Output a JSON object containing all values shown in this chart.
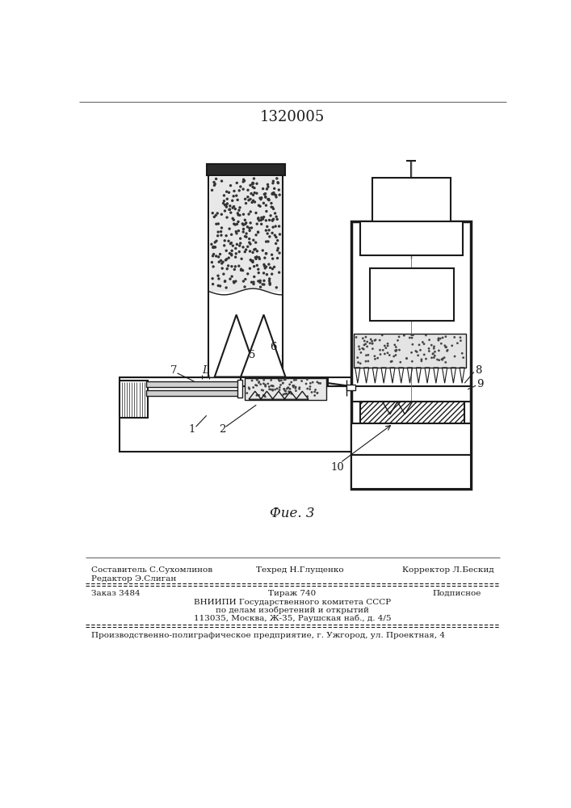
{
  "patent_number": "1320005",
  "fig_label": "Фие. 3",
  "editor_line": "Редактор Э.Слиган",
  "compositor_line": "Составитель С.Сухомлинов",
  "techred_line": "Техред Н.Глущенко",
  "corrector_line": "Корректор Л.Бескид",
  "order_line": "Заказ 3484",
  "tirazh_line": "Тираж 740",
  "podpisnoe_line": "Подписное",
  "vniipи_line": "ВНИИПИ Государственного комитета СССР",
  "po_delam_line": "по делам изобретений и открытий",
  "address_line": "113035, Москва, Ж-35, Раушская наб., д. 4/5",
  "production_line": "Производственно-полиграфическое предприятие, г. Ужгород, ул. Проектная, 4",
  "bg_color": "#ffffff",
  "lc": "#1a1a1a"
}
